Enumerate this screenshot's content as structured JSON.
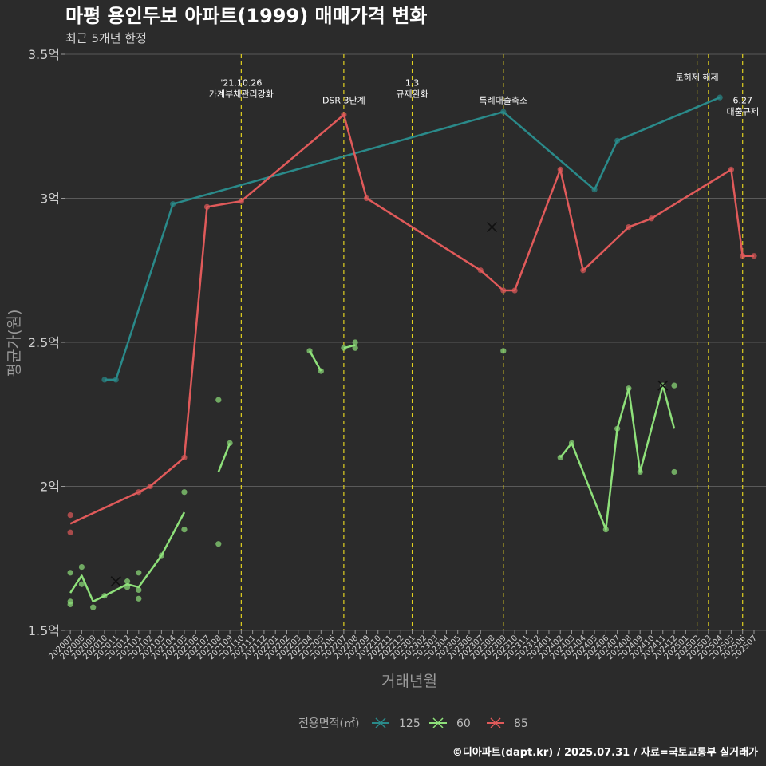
{
  "chart_data": {
    "type": "line",
    "title": "마평 용인두보 아파트(1999) 매매가격 변화",
    "subtitle": "최근 5개년 한정",
    "xlabel": "거래년월",
    "ylabel": "평균가(원)",
    "caption": "©디아파트(dapt.kr) / 2025.07.31 / 자료=국토교통부 실거래가",
    "y_ticks": [
      {
        "value": 1.5,
        "label": "1.5억"
      },
      {
        "value": 2.0,
        "label": "2억"
      },
      {
        "value": 2.5,
        "label": "2.5억"
      },
      {
        "value": 3.0,
        "label": "3억"
      },
      {
        "value": 3.5,
        "label": "3.5억"
      }
    ],
    "ylim": [
      1.5,
      3.5
    ],
    "categories": [
      "202007",
      "202008",
      "202009",
      "202010",
      "202011",
      "202012",
      "202101",
      "202102",
      "202103",
      "202104",
      "202105",
      "202106",
      "202107",
      "202108",
      "202109",
      "202110",
      "202111",
      "202112",
      "202201",
      "202202",
      "202203",
      "202204",
      "202205",
      "202206",
      "202207",
      "202208",
      "202209",
      "202210",
      "202211",
      "202212",
      "202301",
      "202302",
      "202303",
      "202304",
      "202305",
      "202306",
      "202307",
      "202308",
      "202309",
      "202310",
      "202311",
      "202312",
      "202401",
      "202402",
      "202403",
      "202404",
      "202405",
      "202406",
      "202407",
      "202408",
      "202409",
      "202410",
      "202411",
      "202412",
      "202501",
      "202502",
      "202503",
      "202504",
      "202505",
      "202506",
      "202507"
    ],
    "legend": {
      "title": "전용면적(㎡)",
      "position": "bottom"
    },
    "series": [
      {
        "name": "125",
        "color": "#2a8a8a",
        "line": [
          [
            "202010",
            2.37
          ],
          [
            "202011",
            2.37
          ],
          [
            "202104",
            2.98
          ],
          [
            "202309",
            3.3
          ],
          [
            "202405",
            3.03
          ],
          [
            "202407",
            3.2
          ],
          [
            "202504",
            3.35
          ]
        ],
        "points": [
          [
            "202010",
            2.37
          ],
          [
            "202011",
            2.37
          ],
          [
            "202104",
            2.98
          ],
          [
            "202309",
            3.3
          ],
          [
            "202405",
            3.03
          ],
          [
            "202407",
            3.2
          ],
          [
            "202504",
            3.35
          ]
        ],
        "cross": []
      },
      {
        "name": "60",
        "color": "#8ee07a",
        "line": [
          [
            "202007",
            1.63
          ],
          [
            "202008",
            1.69
          ],
          [
            "202009",
            1.6
          ],
          [
            "202010",
            1.62
          ],
          [
            "202012",
            1.66
          ],
          [
            "202101",
            1.65
          ],
          [
            "202103",
            1.76
          ],
          [
            "202105",
            1.91
          ],
          null,
          [
            "202108",
            2.05
          ],
          [
            "202109",
            2.15
          ],
          null,
          [
            "202204",
            2.47
          ],
          [
            "202205",
            2.4
          ],
          null,
          [
            "202207",
            2.48
          ],
          [
            "202208",
            2.49
          ],
          null,
          [
            "202402",
            2.1
          ],
          [
            "202403",
            2.15
          ],
          [
            "202406",
            1.85
          ],
          [
            "202407",
            2.2
          ],
          [
            "202408",
            2.34
          ],
          [
            "202409",
            2.05
          ],
          [
            "202411",
            2.35
          ],
          [
            "202412",
            2.2
          ]
        ],
        "points": [
          [
            "202007",
            1.7
          ],
          [
            "202007",
            1.6
          ],
          [
            "202007",
            1.59
          ],
          [
            "202008",
            1.72
          ],
          [
            "202008",
            1.66
          ],
          [
            "202009",
            1.58
          ],
          [
            "202010",
            1.62
          ],
          [
            "202012",
            1.67
          ],
          [
            "202012",
            1.65
          ],
          [
            "202101",
            1.7
          ],
          [
            "202101",
            1.61
          ],
          [
            "202101",
            1.64
          ],
          [
            "202103",
            1.76
          ],
          [
            "202105",
            1.98
          ],
          [
            "202105",
            1.85
          ],
          [
            "202108",
            2.3
          ],
          [
            "202108",
            1.8
          ],
          [
            "202109",
            2.15
          ],
          [
            "202204",
            2.47
          ],
          [
            "202205",
            2.4
          ],
          [
            "202207",
            2.48
          ],
          [
            "202208",
            2.5
          ],
          [
            "202208",
            2.48
          ],
          [
            "202309",
            2.47
          ],
          [
            "202402",
            2.1
          ],
          [
            "202403",
            2.15
          ],
          [
            "202406",
            1.85
          ],
          [
            "202407",
            2.2
          ],
          [
            "202408",
            2.34
          ],
          [
            "202409",
            2.05
          ],
          [
            "202411",
            2.35
          ],
          [
            "202412",
            2.35
          ],
          [
            "202412",
            2.05
          ]
        ],
        "cross": [
          [
            "202011",
            1.67
          ],
          [
            "202411",
            2.35
          ]
        ]
      },
      {
        "name": "85",
        "color": "#e05a5a",
        "line": [
          [
            "202007",
            1.87
          ],
          [
            "202101",
            1.98
          ],
          [
            "202102",
            2.0
          ],
          [
            "202105",
            2.1
          ],
          [
            "202107",
            2.97
          ],
          [
            "202110",
            2.99
          ],
          [
            "202207",
            3.29
          ],
          [
            "202209",
            3.0
          ],
          [
            "202307",
            2.75
          ],
          [
            "202309",
            2.68
          ],
          [
            "202310",
            2.68
          ],
          [
            "202402",
            3.1
          ],
          [
            "202404",
            2.75
          ],
          [
            "202408",
            2.9
          ],
          [
            "202410",
            2.93
          ],
          [
            "202505",
            3.1
          ],
          [
            "202506",
            2.8
          ],
          [
            "202507",
            2.8
          ]
        ],
        "points": [
          [
            "202007",
            1.9
          ],
          [
            "202007",
            1.84
          ],
          [
            "202101",
            1.98
          ],
          [
            "202102",
            2.0
          ],
          [
            "202105",
            2.1
          ],
          [
            "202107",
            2.97
          ],
          [
            "202110",
            2.99
          ],
          [
            "202207",
            3.29
          ],
          [
            "202209",
            3.0
          ],
          [
            "202307",
            2.75
          ],
          [
            "202309",
            2.68
          ],
          [
            "202310",
            2.68
          ],
          [
            "202402",
            3.1
          ],
          [
            "202404",
            2.75
          ],
          [
            "202408",
            2.9
          ],
          [
            "202410",
            2.93
          ],
          [
            "202505",
            3.1
          ],
          [
            "202506",
            2.8
          ],
          [
            "202507",
            2.8
          ]
        ],
        "cross": [
          [
            "202308",
            2.9
          ]
        ]
      }
    ],
    "annotations": [
      {
        "x": "202110",
        "lines": [
          "'21.10.26",
          "가계부채관리강화"
        ],
        "y": 3.39
      },
      {
        "x": "202207",
        "lines": [
          "DSR 3단계"
        ],
        "y": 3.33
      },
      {
        "x": "202301",
        "lines": [
          "1.3",
          "규제완화"
        ],
        "y": 3.39
      },
      {
        "x": "202309",
        "lines": [
          "특례대출축소"
        ],
        "y": 3.33
      },
      {
        "x": "202502",
        "lines": [
          "토허제 해제"
        ],
        "y": 3.41
      },
      {
        "x": "202506",
        "lines": [
          "6.27",
          "대출규제"
        ],
        "y": 3.33
      }
    ],
    "vlines": [
      "202110",
      "202207",
      "202301",
      "202309",
      "202502",
      "202503",
      "202506"
    ],
    "vline_color": "#e0d020",
    "grid": true
  }
}
